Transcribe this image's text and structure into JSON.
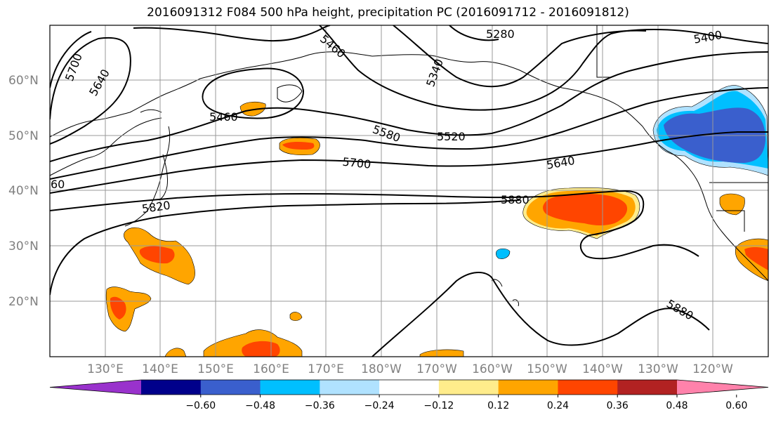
{
  "title": "2016091312 F084 500 hPa height, precipitation PC (2016091712 - 2016091812)",
  "map": {
    "lat_labels": [
      "60°N",
      "50°N",
      "40°N",
      "30°N",
      "20°N"
    ],
    "lon_labels": [
      "130°E",
      "140°E",
      "150°E",
      "160°E",
      "170°E",
      "180°W",
      "170°W",
      "160°W",
      "150°W",
      "140°W",
      "130°W",
      "120°W"
    ],
    "contour_labels": [
      "5700",
      "5640",
      "5460",
      "5460",
      "5340",
      "5280",
      "5400",
      "5580",
      "5520",
      "5700",
      "5640",
      "5820",
      "60",
      "5880",
      "5880"
    ]
  },
  "colorbar": {
    "colors": [
      "#9932cc",
      "#00008b",
      "#3a5fcd",
      "#00bfff",
      "#b0e2ff",
      "#ffffff",
      "#ffec8b",
      "#ffa500",
      "#ff4500",
      "#b22222",
      "#ff82ab"
    ],
    "tick_labels": [
      "−0.60",
      "−0.48",
      "−0.36",
      "−0.24",
      "−0.12",
      "0.12",
      "0.24",
      "0.36",
      "0.48",
      "0.60"
    ]
  }
}
